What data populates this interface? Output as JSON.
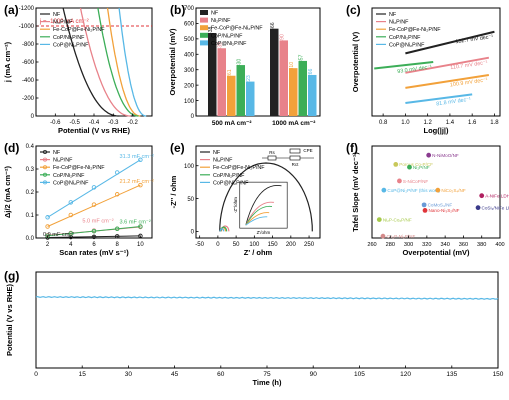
{
  "colors": {
    "NF": "#222222",
    "Ni2P": "#e8828a",
    "FeCoP": "#f2a13a",
    "CoP": "#3cae58",
    "CoPNi2P": "#58b8e6",
    "ref": "#e0353a",
    "axis": "#000000"
  },
  "chart_data": [
    {
      "panel": "(a)",
      "type": "line",
      "xlabel": "Potential (V vs RHE)",
      "ylabel": "j (mA cm⁻²)",
      "xlim": [
        -0.7,
        -0.1
      ],
      "ylim": [
        -1200,
        0
      ],
      "xticks": [
        "-0.6",
        "-0.5",
        "-0.4",
        "-0.3",
        "-0.2"
      ],
      "yticks": [
        "0",
        "-200",
        "-400",
        "-600",
        "-800",
        "-1000",
        "-1200"
      ],
      "annotation": "j = -1000 mA cm⁻²",
      "reference_y": -1000,
      "series": [
        {
          "name": "NF",
          "color_key": "NF",
          "onset": -0.27,
          "end": -0.56
        },
        {
          "name": "Ni₂P/NF",
          "color_key": "Ni2P",
          "onset": -0.21,
          "end": -0.47
        },
        {
          "name": "Fe-CoP@Fe-Ni₂P/NF",
          "color_key": "FeCoP",
          "onset": -0.16,
          "end": -0.33
        },
        {
          "name": "CoP/Ni₂P/NF",
          "color_key": "CoP",
          "onset": -0.17,
          "end": -0.38
        },
        {
          "name": "CoP@Ni₂P/NF",
          "color_key": "CoPNi2P",
          "onset": -0.13,
          "end": -0.27
        }
      ]
    },
    {
      "panel": "(b)",
      "type": "bar",
      "ylabel": "Overpotential (mV)",
      "ylim": [
        0,
        700
      ],
      "yticks": [
        "0",
        "100",
        "200",
        "300",
        "400",
        "500",
        "600",
        "700"
      ],
      "categories": [
        "500 mA cm⁻²",
        "1000 mA cm⁻²"
      ],
      "series": [
        {
          "name": "NF",
          "color_key": "NF",
          "values": [
            538,
            566
          ]
        },
        {
          "name": "Ni₂P/NF",
          "color_key": "Ni2P",
          "values": [
            439,
            490
          ]
        },
        {
          "name": "Fe-CoP@Fe-Ni₂P/NF",
          "color_key": "FeCoP",
          "values": [
            261,
            310
          ]
        },
        {
          "name": "CoP/Ni₂P/NF",
          "color_key": "CoP",
          "values": [
            330,
            357
          ]
        },
        {
          "name": "CoP@Ni₂P/NF",
          "color_key": "CoPNi2P",
          "values": [
            223,
            266
          ]
        }
      ]
    },
    {
      "panel": "(c)",
      "type": "line",
      "xlabel": "Log(|j|)",
      "ylabel": "Overpotential (V)",
      "xlim": [
        0.7,
        1.85
      ],
      "ylim": [
        0.0,
        0.5
      ],
      "xticks": [
        "0.8",
        "1.0",
        "1.2",
        "1.4",
        "1.6",
        "1.8"
      ],
      "series": [
        {
          "name": "NF",
          "color_key": "NF",
          "x": [
            1.0,
            1.8
          ],
          "y": [
            0.29,
            0.39
          ],
          "label": "132.7 mV dec⁻¹"
        },
        {
          "name": "Ni₂P/NF",
          "color_key": "Ni2P",
          "x": [
            1.0,
            1.75
          ],
          "y": [
            0.2,
            0.27
          ],
          "label": "110.7 mV dec⁻¹"
        },
        {
          "name": "Fe-CoP@Fe-Ni₂P/NF",
          "color_key": "FeCoP",
          "x": [
            1.0,
            1.75
          ],
          "y": [
            0.13,
            0.19
          ],
          "label": "100.9 mV dec⁻¹"
        },
        {
          "name": "CoP/Ni₂P/NF",
          "color_key": "CoP",
          "x": [
            0.72,
            1.25
          ],
          "y": [
            0.22,
            0.25
          ],
          "label": "93.0 mV dec⁻¹"
        },
        {
          "name": "CoP@Ni₂P/NF",
          "color_key": "CoPNi2P",
          "x": [
            1.0,
            1.6
          ],
          "y": [
            0.06,
            0.1
          ],
          "label": "81.8 mV dec⁻¹"
        }
      ]
    },
    {
      "panel": "(d)",
      "type": "scatter",
      "xlabel": "Scan rates (mV s⁻¹)",
      "ylabel": "Δj/2 (mA cm⁻²)",
      "xlim": [
        1,
        11
      ],
      "ylim": [
        0,
        0.4
      ],
      "xticks": [
        "2",
        "4",
        "6",
        "8",
        "10"
      ],
      "yticks": [
        "0.0",
        "0.1",
        "0.2",
        "0.3",
        "0.4"
      ],
      "x": [
        2,
        4,
        6,
        8,
        10
      ],
      "series": [
        {
          "name": "NF",
          "color_key": "NF",
          "values": [
            0.002,
            0.004,
            0.005,
            0.007,
            0.009
          ],
          "label": "0.9 mF cm⁻²"
        },
        {
          "name": "Ni₂P/NF",
          "color_key": "Ni2P",
          "values": [
            0.012,
            0.022,
            0.032,
            0.04,
            0.048
          ],
          "label": "5.0 mF cm⁻²"
        },
        {
          "name": "Fe-CoP@Fe-Ni₂P/NF",
          "color_key": "FeCoP",
          "values": [
            0.05,
            0.1,
            0.145,
            0.19,
            0.23
          ],
          "label": "21.2 mF cm⁻²"
        },
        {
          "name": "CoP/Ni₂P/NF",
          "color_key": "CoP",
          "values": [
            0.01,
            0.02,
            0.03,
            0.04,
            0.05
          ],
          "label": "3.6 mF cm⁻²"
        },
        {
          "name": "CoP@Ni₂P/NF",
          "color_key": "CoPNi2P",
          "values": [
            0.09,
            0.155,
            0.22,
            0.285,
            0.34
          ],
          "label": "31.3 mF cm⁻²"
        }
      ]
    },
    {
      "panel": "(e)",
      "type": "line",
      "xlabel": "Z' / ohm",
      "ylabel": "-Z'' / ohm",
      "xlim": [
        -60,
        280
      ],
      "ylim": [
        -10,
        130
      ],
      "xticks": [
        "-50",
        "0",
        "50",
        "100",
        "150",
        "200",
        "250"
      ],
      "yticks": [
        "0",
        "50",
        "100"
      ],
      "circuit_labels": [
        "Rs",
        "Rct",
        "CPE"
      ],
      "inset_ylabel": "-Z''/ohm",
      "inset_xlabel": "Z'/ohm",
      "series": [
        {
          "name": "NF",
          "color_key": "NF",
          "center": 132,
          "radius": 127
        },
        {
          "name": "Ni₂P/NF",
          "color_key": "Ni2P",
          "center": 20,
          "radius": 10
        },
        {
          "name": "Fe-CoP@Fe-Ni₂P/NF",
          "color_key": "FeCoP",
          "center": 14,
          "radius": 7
        },
        {
          "name": "CoP/Ni₂P/NF",
          "color_key": "CoP",
          "center": 16,
          "radius": 8
        },
        {
          "name": "CoP@Ni₂P/NF",
          "color_key": "CoPNi2P",
          "center": 11,
          "radius": 5
        }
      ]
    },
    {
      "panel": "(f)",
      "type": "scatter",
      "xlabel": "Overpotential (mV)",
      "ylabel": "Tafel Slope (mV dec⁻¹)",
      "xlim": [
        260,
        400
      ],
      "ylim": [
        60,
        160
      ],
      "xticks": [
        "260",
        "280",
        "300",
        "320",
        "340",
        "360",
        "380",
        "400"
      ],
      "points": [
        {
          "label": "N-NiMoO/NF",
          "x": 322,
          "y": 150,
          "color": "#8a3b8f"
        },
        {
          "label": "Porous Co-P/CF",
          "x": 286,
          "y": 140,
          "color": "#c8c85a"
        },
        {
          "label": "Ni₂P/NF",
          "x": 301,
          "y": 137,
          "color": "#3cae58"
        },
        {
          "label": "S-NiCoP/NF",
          "x": 290,
          "y": 122,
          "color": "#e8828a"
        },
        {
          "label": "CoP@Ni₂P/NF (this work)",
          "x": 273,
          "y": 112,
          "color": "#58b8e6"
        },
        {
          "label": "NiCo₂S₄/NF",
          "x": 332,
          "y": 112,
          "color": "#f2a13a"
        },
        {
          "label": "A-NiFe LDH/NF",
          "x": 380,
          "y": 106,
          "color": "#b02060"
        },
        {
          "label": "CoMoS₄/NF",
          "x": 317,
          "y": 96,
          "color": "#6a9ad6"
        },
        {
          "label": "Nano-Ni₃S₂/NF",
          "x": 318,
          "y": 90,
          "color": "#e0353a"
        },
        {
          "label": "CoSi₃/NiFe LDH/NF",
          "x": 376,
          "y": 93,
          "color": "#3a3a8a"
        },
        {
          "label": "Ni₂P-Co₂P/NF",
          "x": 268,
          "y": 80,
          "color": "#a6c94a"
        },
        {
          "label": "Co₂P-Ni₂P/NF",
          "x": 272,
          "y": 62,
          "color": "#d48a8a"
        }
      ]
    },
    {
      "panel": "(g)",
      "type": "line",
      "xlabel": "Time (h)",
      "ylabel": "Potential (V vs RHE)",
      "xlim": [
        0,
        150
      ],
      "ylim": [
        -1.0,
        0.0
      ],
      "xticks": [
        "0",
        "15",
        "30",
        "45",
        "60",
        "75",
        "90",
        "105",
        "120",
        "135",
        "150"
      ],
      "series": [
        {
          "name": "CoP@Ni₂P/NF",
          "color_key": "CoPNi2P",
          "start": -0.26,
          "end": -0.28
        }
      ]
    }
  ]
}
